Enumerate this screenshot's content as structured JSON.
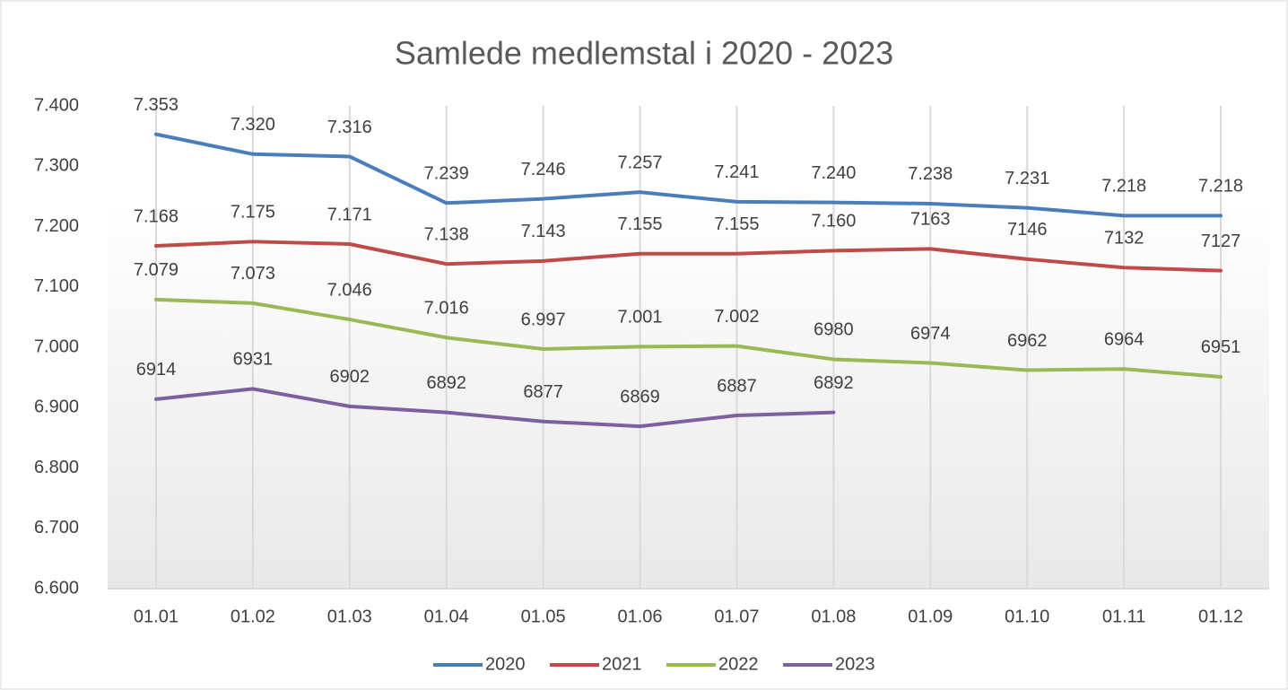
{
  "chart_data": {
    "type": "line",
    "title": "Samlede medlemstal i 2020 - 2023",
    "categories": [
      "01.01",
      "01.02",
      "01.03",
      "01.04",
      "01.05",
      "01.06",
      "01.07",
      "01.08",
      "01.09",
      "01.10",
      "01.11",
      "01.12"
    ],
    "series": [
      {
        "name": "2020",
        "color": "#4a7ebb",
        "values": [
          7353,
          7320,
          7316,
          7239,
          7246,
          7257,
          7241,
          7240,
          7238,
          7231,
          7218,
          7218
        ],
        "value_labels": [
          "7.353",
          "7.320",
          "7.316",
          "7.239",
          "7.246",
          "7.257",
          "7.241",
          "7.240",
          "7.238",
          "7.231",
          "7.218",
          "7.218"
        ]
      },
      {
        "name": "2021",
        "color": "#be4b48",
        "values": [
          7168,
          7175,
          7171,
          7138,
          7143,
          7155,
          7155,
          7160,
          7163,
          7146,
          7132,
          7127
        ],
        "value_labels": [
          "7.168",
          "7.175",
          "7.171",
          "7.138",
          "7.143",
          "7.155",
          "7.155",
          "7.160",
          "7163",
          "7146",
          "7132",
          "7127"
        ]
      },
      {
        "name": "2022",
        "color": "#98b954",
        "values": [
          7079,
          7073,
          7046,
          7016,
          6997,
          7001,
          7002,
          6980,
          6974,
          6962,
          6964,
          6951
        ],
        "value_labels": [
          "7.079",
          "7.073",
          "7.046",
          "7.016",
          "6.997",
          "7.001",
          "7.002",
          "6980",
          "6974",
          "6962",
          "6964",
          "6951"
        ]
      },
      {
        "name": "2023",
        "color": "#7d60a0",
        "values": [
          6914,
          6931,
          6902,
          6892,
          6877,
          6869,
          6887,
          6892,
          null,
          null,
          null,
          null
        ]
      }
    ],
    "ylim": [
      6600,
      7400
    ],
    "yticks": [
      {
        "value": 6600,
        "label": "6.600"
      },
      {
        "value": 6700,
        "label": "6.700"
      },
      {
        "value": 6800,
        "label": "6.800"
      },
      {
        "value": 6900,
        "label": "6.900"
      },
      {
        "value": 7000,
        "label": "7.000"
      },
      {
        "value": 7100,
        "label": "7.100"
      },
      {
        "value": 7200,
        "label": "7.200"
      },
      {
        "value": 7300,
        "label": "7.300"
      },
      {
        "value": 7400,
        "label": "7.400"
      }
    ],
    "grid": true,
    "legend": "bottom"
  }
}
